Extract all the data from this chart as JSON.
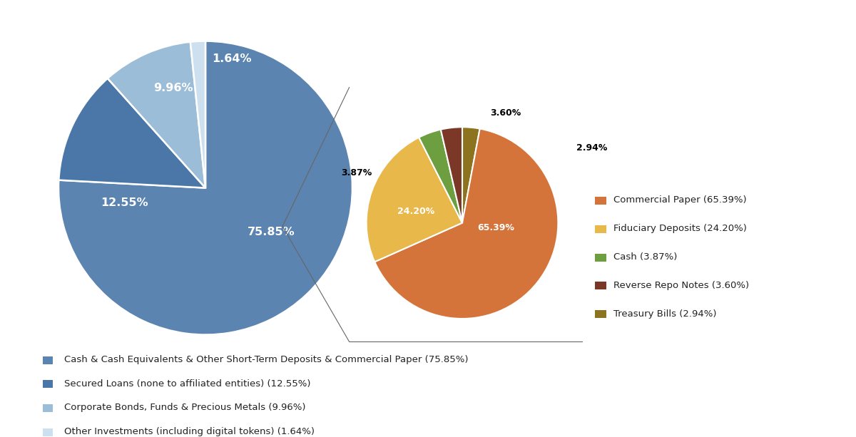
{
  "main_pie": {
    "labels": [
      "Cash & Cash Equivalents & Other Short-Term Deposits & Commercial Paper (75.85%)",
      "Secured Loans (none to affiliated entities) (12.55%)",
      "Corporate Bonds, Funds & Precious Metals (9.96%)",
      "Other Investments (including digital tokens) (1.64%)"
    ],
    "values": [
      75.85,
      12.55,
      9.96,
      1.64
    ],
    "colors": [
      "#5b84b1",
      "#4a76a8",
      "#9cbdd8",
      "#cde0ef"
    ],
    "pct_labels": [
      "75.85%",
      "12.55%",
      "9.96%",
      "1.64%"
    ]
  },
  "sub_pie": {
    "labels": [
      "Commercial Paper (65.39%)",
      "Fiduciary Deposits (24.20%)",
      "Cash (3.87%)",
      "Reverse Repo Notes (3.60%)",
      "Treasury Bills (2.94%)"
    ],
    "values": [
      65.39,
      24.2,
      3.87,
      3.6,
      2.94
    ],
    "colors": [
      "#d4743a",
      "#e8b84b",
      "#6d9e3f",
      "#7b3826",
      "#8b7320"
    ],
    "pct_labels": [
      "65.39%",
      "24.20%",
      "3.87%",
      "3.60%",
      "2.94%"
    ]
  },
  "background_color": "#ffffff"
}
